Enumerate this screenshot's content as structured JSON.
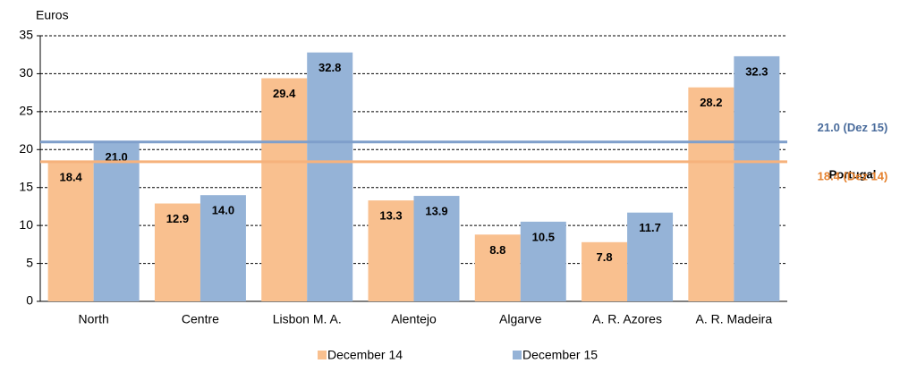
{
  "chart_data": {
    "type": "bar",
    "y_label": "Euros",
    "categories": [
      "North",
      "Centre",
      "Lisbon M. A.",
      "Alentejo",
      "Algarve",
      "A. R. Azores",
      "A. R. Madeira"
    ],
    "series": [
      {
        "name": "December 14",
        "color": "#f9c08f",
        "values": [
          18.4,
          12.9,
          29.4,
          13.3,
          8.8,
          7.8,
          28.2
        ],
        "value_labels": [
          "18.4",
          "12.9",
          "29.4",
          "13.3",
          "8.8",
          "7.8",
          "28.2"
        ]
      },
      {
        "name": "December 15",
        "color": "#95b3d7",
        "values": [
          21.0,
          14.0,
          32.8,
          13.9,
          10.5,
          11.7,
          32.3
        ],
        "value_labels": [
          "21.0",
          "14.0",
          "32.8",
          "13.9",
          "10.5",
          "11.7",
          "32.3"
        ]
      }
    ],
    "reference_title": "Portugal",
    "reference_lines": [
      {
        "value": 21.0,
        "label": "21.0 (Dez 15)",
        "color": "#7f9fcb",
        "text_color": "#4a6c9c"
      },
      {
        "value": 18.4,
        "label": "18.4 (Dez 14)",
        "color": "#f6b27c",
        "text_color": "#e5822f"
      }
    ],
    "ylim": [
      0,
      35
    ],
    "yticks": [
      0,
      5,
      10,
      15,
      20,
      25,
      30,
      35
    ],
    "grid": true
  }
}
